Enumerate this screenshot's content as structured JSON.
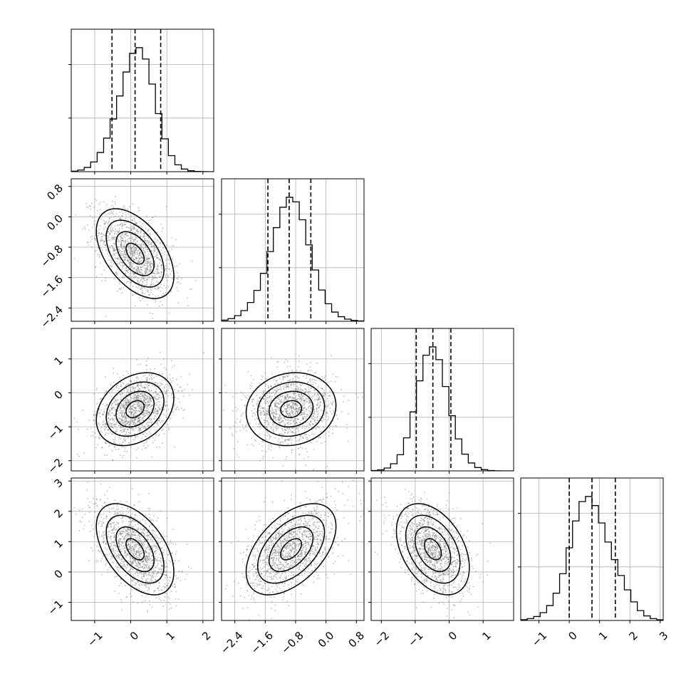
{
  "chart_data": {
    "type": "corner",
    "description_free": true,
    "dimensions": 4,
    "parameters": [
      {
        "index": 0,
        "median": 0.12,
        "q16": -0.52,
        "q84": 0.83,
        "sigma": 0.5,
        "range": [
          -1.65,
          2.3
        ],
        "ticks": [
          -1,
          0,
          1,
          2
        ],
        "tick_labels": [
          "−1",
          "0",
          "1",
          "2"
        ]
      },
      {
        "index": 1,
        "median": -0.97,
        "q16": -1.53,
        "q84": -0.4,
        "sigma": 0.55,
        "range": [
          -2.75,
          1.0
        ],
        "ticks": [
          -2.4,
          -1.6,
          -0.8,
          0.0,
          0.8
        ],
        "tick_labels": [
          "−2.4",
          "−1.6",
          "−0.8",
          "0.0",
          "0.8"
        ]
      },
      {
        "index": 2,
        "median": -0.48,
        "q16": -0.97,
        "q84": 0.05,
        "sigma": 0.5,
        "range": [
          -2.3,
          1.9
        ],
        "ticks": [
          -2,
          -1,
          0,
          1
        ],
        "tick_labels": [
          "−2",
          "−1",
          "0",
          "1"
        ]
      },
      {
        "index": 3,
        "median": 0.75,
        "q16": 0.0,
        "q84": 1.52,
        "sigma": 0.7,
        "range": [
          -1.6,
          3.1
        ],
        "ticks": [
          -1,
          0,
          1,
          2,
          3
        ],
        "tick_labels": [
          "−1",
          "0",
          "1",
          "2",
          "3"
        ]
      }
    ],
    "correlations": [
      [
        1,
        -0.5,
        0.3,
        -0.5
      ],
      [
        -0.5,
        1,
        0.1,
        0.5
      ],
      [
        0.3,
        0.1,
        1,
        -0.4
      ],
      [
        -0.5,
        0.5,
        -0.4,
        1
      ]
    ],
    "contour_levels": 4,
    "grid": true,
    "show_quantiles": true
  }
}
